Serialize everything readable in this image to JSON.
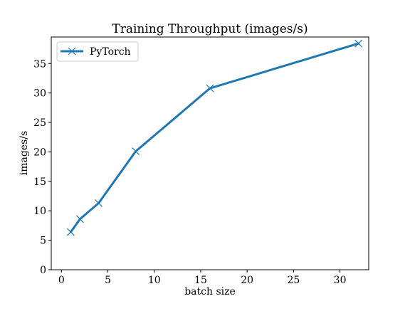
{
  "chart_data": {
    "type": "line",
    "title": "Training Throughput (images/s)",
    "xlabel": "batch size",
    "ylabel": "images/s",
    "xlim": [
      -1.1,
      33.1
    ],
    "ylim": [
      0,
      39.5
    ],
    "xticks": [
      0,
      5,
      10,
      15,
      20,
      25,
      30
    ],
    "yticks": [
      0,
      5,
      10,
      15,
      20,
      25,
      30,
      35
    ],
    "grid": false,
    "legend_position": "upper-left",
    "series": [
      {
        "name": "PyTorch",
        "color": "#1f77b4",
        "marker": "x",
        "x": [
          1,
          2,
          4,
          8,
          16,
          32
        ],
        "y": [
          6.4,
          8.6,
          11.3,
          20.1,
          30.8,
          38.4
        ]
      }
    ]
  }
}
